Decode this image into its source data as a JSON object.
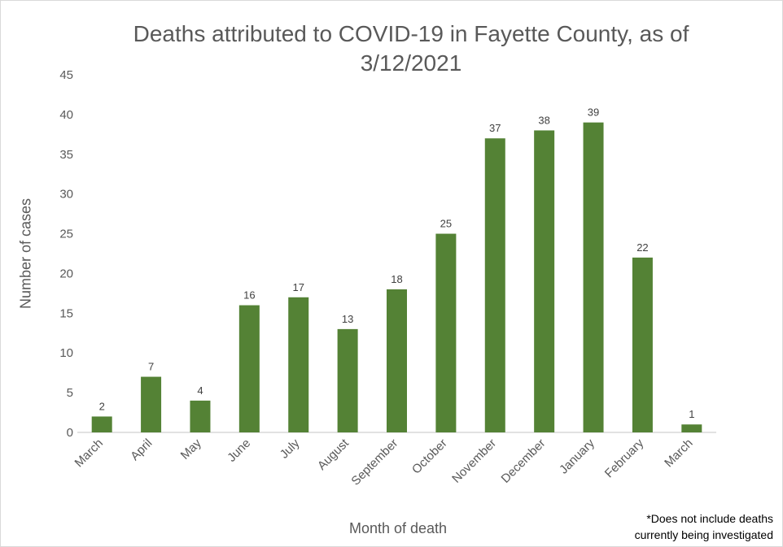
{
  "chart_data": {
    "type": "bar",
    "title_lines": [
      "Deaths attributed to COVID-19 in Fayette County, as of",
      "3/12/2021"
    ],
    "xlabel": "Month of death",
    "ylabel": "Number of cases",
    "categories": [
      "March",
      "April",
      "May",
      "June",
      "July",
      "August",
      "September",
      "October",
      "November",
      "December",
      "January",
      "February",
      "March"
    ],
    "values": [
      2,
      7,
      4,
      16,
      17,
      13,
      18,
      25,
      37,
      38,
      39,
      22,
      1
    ],
    "data_labels": [
      "2",
      "7",
      "4",
      "16",
      "17",
      "13",
      "18",
      "25",
      "37",
      "38",
      "39",
      "22",
      "1"
    ],
    "ylim": [
      0,
      45
    ],
    "yticks": [
      0,
      5,
      10,
      15,
      20,
      25,
      30,
      35,
      40,
      45
    ],
    "grid": false,
    "legend": "none",
    "bar_color": "#548235",
    "axis_color": "#d9d9d9"
  },
  "footnote": {
    "line1": "*Does not include deaths",
    "line2": "currently being investigated"
  }
}
